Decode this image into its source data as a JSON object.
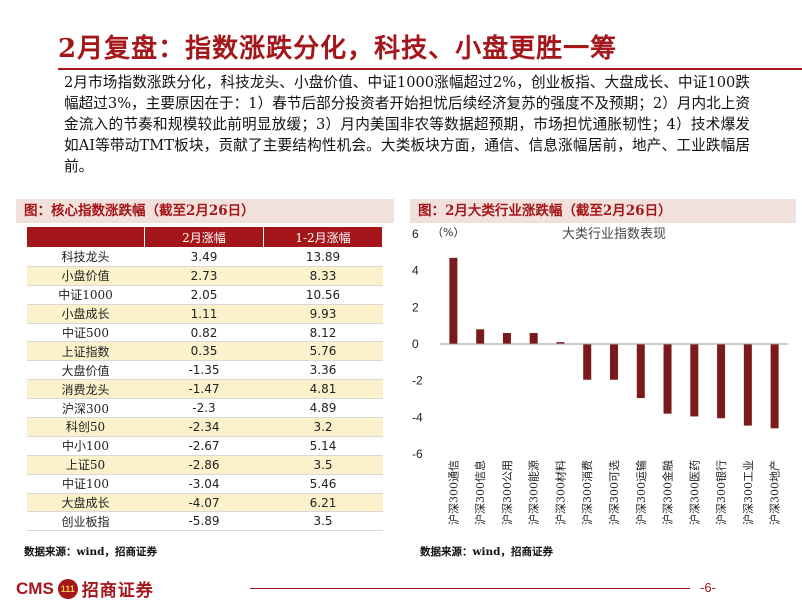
{
  "slide": {
    "title": "2月复盘：指数涨跌分化，科技、小盘更胜一筹",
    "summary": "2月市场指数涨跌分化，科技龙头、小盘价值、中证1000涨幅超过2%，创业板指、大盘成长、中证100跌幅超过3%，主要原因在于：1）春节后部分投资者开始担忧后续经济复苏的强度不及预期；2）月内北上资金流入的节奏和规模较此前明显放缓；3）月内美国非农等数据超预期，市场担忧通胀韧性；4）技术爆发如AI等带动TMT板块，贡献了主要结构性机会。大类板块方面，通信、信息涨幅居前，地产、工业跌幅居前。",
    "page_number": "-6-"
  },
  "left_panel": {
    "title": "图：核心指数涨跌幅（截至2月26日）",
    "headers": [
      "",
      "2月涨幅",
      "1-2月涨幅"
    ],
    "rows": [
      [
        "科技龙头",
        "3.49",
        "13.89"
      ],
      [
        "小盘价值",
        "2.73",
        "8.33"
      ],
      [
        "中证1000",
        "2.05",
        "10.56"
      ],
      [
        "小盘成长",
        "1.11",
        "9.93"
      ],
      [
        "中证500",
        "0.82",
        "8.12"
      ],
      [
        "上证指数",
        "0.35",
        "5.76"
      ],
      [
        "大盘价值",
        "-1.35",
        "3.36"
      ],
      [
        "消费龙头",
        "-1.47",
        "4.81"
      ],
      [
        "沪深300",
        "-2.3",
        "4.89"
      ],
      [
        "科创50",
        "-2.34",
        "3.2"
      ],
      [
        "中小100",
        "-2.67",
        "5.14"
      ],
      [
        "上证50",
        "-2.86",
        "3.5"
      ],
      [
        "中证100",
        "-3.04",
        "5.46"
      ],
      [
        "大盘成长",
        "-4.07",
        "6.21"
      ],
      [
        "创业板指",
        "-5.89",
        "3.5"
      ]
    ],
    "source": "数据来源：wind，招商证券"
  },
  "right_panel": {
    "title": "图：2月大类行业涨跌幅（截至2月26日）",
    "source": "数据来源：wind，招商证券"
  },
  "chart_data": {
    "type": "bar",
    "title": "大类行业指数表现",
    "unit_label": "（%）",
    "categories": [
      "沪深300通信",
      "沪深300信息",
      "沪深300公用",
      "沪深300能源",
      "沪深300材料",
      "沪深300消费",
      "沪深300可选",
      "沪深300运输",
      "沪深300金融",
      "沪深300医药",
      "沪深300银行",
      "沪深300工业",
      "沪深300地产"
    ],
    "series": [
      {
        "values": [
          4.7,
          0.8,
          0.6,
          0.6,
          0.1,
          -1.95,
          -1.95,
          -2.95,
          -3.8,
          -3.95,
          -4.05,
          -4.45,
          -4.6
        ]
      }
    ],
    "ylim": [
      -6,
      6
    ],
    "yticks": [
      -6,
      -4,
      -2,
      0,
      2,
      4,
      6
    ],
    "grid": false,
    "legend": "none",
    "bar_color": "#7b1a1a"
  },
  "footer": {
    "logo_latin": "CMS",
    "logo_mark": "111",
    "logo_cn": "招商证券"
  }
}
